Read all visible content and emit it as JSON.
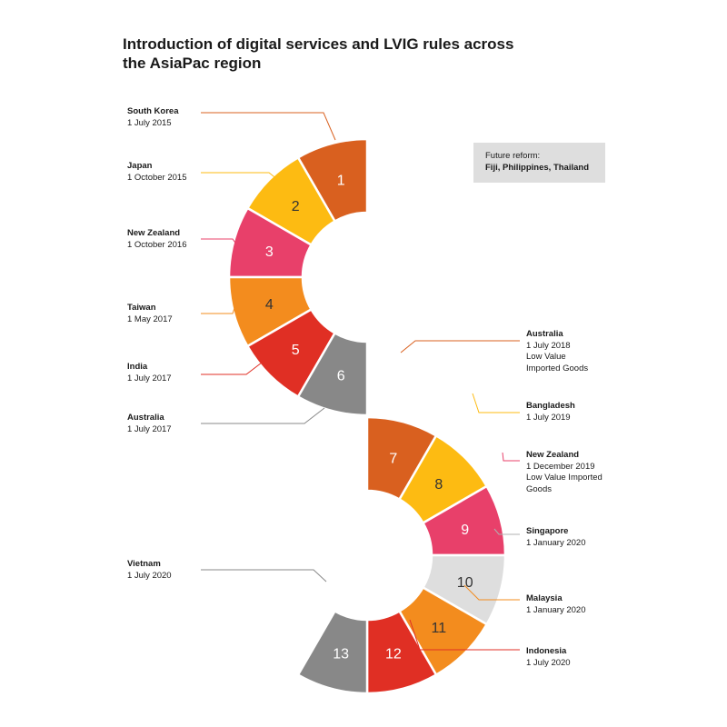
{
  "title": {
    "line1": "Introduction of digital services and LVIG rules across",
    "line2": "the AsiaPac region"
  },
  "future_reform": {
    "title": "Future reform:",
    "countries": "Fiji, Philippines, Thailand"
  },
  "colors": {
    "orange_dark": "#D9601F",
    "yellow": "#FDBB12",
    "pink": "#E8406A",
    "orange": "#F38C1E",
    "red": "#E02F24",
    "grey": "#888888",
    "light_grey": "#DEDEDE"
  },
  "segments": [
    {
      "number": "1",
      "color": "#D9601F",
      "text_color": "#ffffff",
      "country": "South Korea",
      "lines": [
        "1 July 2015"
      ]
    },
    {
      "number": "2",
      "color": "#FDBB12",
      "text_color": "#333333",
      "country": "Japan",
      "lines": [
        "1 October 2015"
      ]
    },
    {
      "number": "3",
      "color": "#E8406A",
      "text_color": "#ffffff",
      "country": "New Zealand",
      "lines": [
        "1 October 2016"
      ]
    },
    {
      "number": "4",
      "color": "#F38C1E",
      "text_color": "#333333",
      "country": "Taiwan",
      "lines": [
        "1 May 2017"
      ]
    },
    {
      "number": "5",
      "color": "#E02F24",
      "text_color": "#ffffff",
      "country": "India",
      "lines": [
        "1 July 2017"
      ]
    },
    {
      "number": "6",
      "color": "#888888",
      "text_color": "#ffffff",
      "country": "Australia",
      "lines": [
        "1 July 2017"
      ]
    },
    {
      "number": "7",
      "color": "#D9601F",
      "text_color": "#ffffff",
      "country": "Australia",
      "lines": [
        "1 July 2018",
        "Low Value",
        "Imported Goods"
      ]
    },
    {
      "number": "8",
      "color": "#FDBB12",
      "text_color": "#333333",
      "country": "Bangladesh",
      "lines": [
        "1 July 2019"
      ]
    },
    {
      "number": "9",
      "color": "#E8406A",
      "text_color": "#ffffff",
      "country": "New Zealand",
      "lines": [
        "1 December 2019",
        "Low Value Imported",
        "Goods"
      ]
    },
    {
      "number": "10",
      "color": "#DEDEDE",
      "text_color": "#333333",
      "country": "Singapore",
      "lines": [
        "1 January 2020"
      ]
    },
    {
      "number": "11",
      "color": "#F38C1E",
      "text_color": "#333333",
      "country": "Malaysia",
      "lines": [
        "1 January 2020"
      ]
    },
    {
      "number": "12",
      "color": "#E02F24",
      "text_color": "#ffffff",
      "country": "Indonesia",
      "lines": [
        "1 July 2020"
      ]
    },
    {
      "number": "13",
      "color": "#888888",
      "text_color": "#ffffff",
      "country": "Vietnam",
      "lines": [
        "1 July 2020"
      ]
    }
  ]
}
